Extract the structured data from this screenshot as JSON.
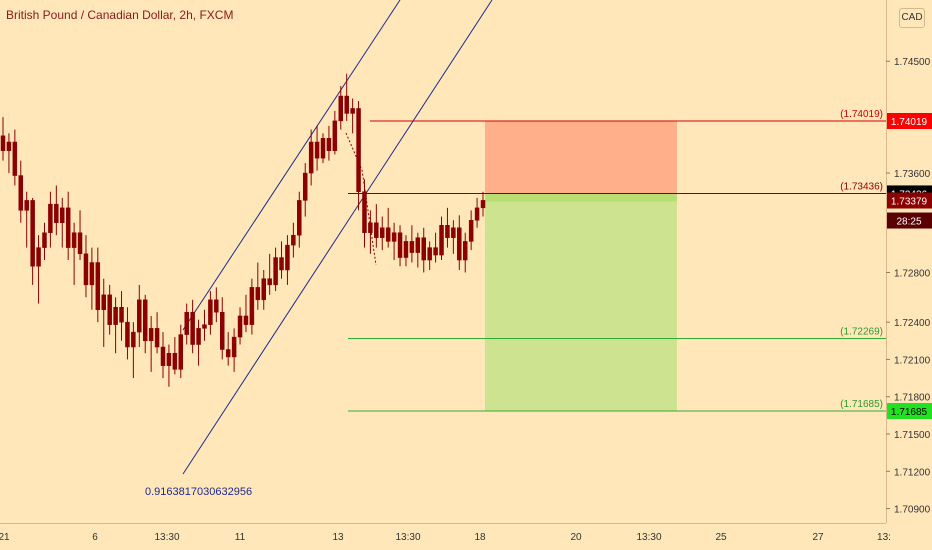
{
  "header": {
    "title": "British Pound / Canadian Dollar, 2h, FXCM",
    "currency": "CAD"
  },
  "colors": {
    "background": "#FFE7BA",
    "bull": "#8B0000",
    "bear": "#8B0000",
    "channel": "#1F2A8C",
    "stop_line": "#D00000",
    "entry_line": "#8B0000",
    "target_line": "#33AA33",
    "stop_zone": "#FFB08A",
    "profit_zone": "#CDE38F",
    "stop_badge": "#FF0000",
    "entry_badge": "#000000",
    "last_badge": "#8B0000",
    "target_badge": "#22E022"
  },
  "chart_data": {
    "type": "candlestick",
    "title": "British Pound / Canadian Dollar, 2h, FXCM",
    "y_ticks": [
      "1.74500",
      "1.73600",
      "1.72800",
      "1.72400",
      "1.72100",
      "1.71800",
      "1.71500",
      "1.71200",
      "1.70900"
    ],
    "y_tick_values": [
      1.745,
      1.736,
      1.728,
      1.724,
      1.721,
      1.718,
      1.715,
      1.712,
      1.709
    ],
    "x_ticks": [
      "21",
      "6",
      "13:30",
      "11",
      "13",
      "13:30",
      "18",
      "20",
      "13:30",
      "25",
      "27",
      "13:"
    ],
    "levels": {
      "stop": {
        "label": "(1.74019)",
        "value": 1.74019
      },
      "entry": {
        "label": "(1.73436)",
        "value": 1.73436
      },
      "target1": {
        "label": "(1.72269)",
        "value": 1.72269
      },
      "target2": {
        "label": "(1.71685)",
        "value": 1.71685
      }
    },
    "price_badges": [
      {
        "name": "stop",
        "text": "1.74019",
        "value": 1.74019
      },
      {
        "name": "entry",
        "text": "1.73436",
        "value": 1.73436
      },
      {
        "name": "last",
        "text": "1.73379",
        "value": 1.73379
      },
      {
        "name": "timer",
        "text": "28:25"
      },
      {
        "name": "target",
        "text": "1.71685",
        "value": 1.71685
      }
    ],
    "annotation": "0.9163817030632956",
    "candles": [
      [
        1.739,
        1.7405,
        1.737,
        1.7378
      ],
      [
        1.7378,
        1.7392,
        1.736,
        1.7385
      ],
      [
        1.7385,
        1.7395,
        1.735,
        1.7358
      ],
      [
        1.7358,
        1.737,
        1.732,
        1.733
      ],
      [
        1.733,
        1.7345,
        1.73,
        1.7338
      ],
      [
        1.7338,
        1.734,
        1.727,
        1.7285
      ],
      [
        1.7285,
        1.731,
        1.7255,
        1.73
      ],
      [
        1.73,
        1.732,
        1.729,
        1.7312
      ],
      [
        1.7312,
        1.7345,
        1.73,
        1.7335
      ],
      [
        1.7335,
        1.735,
        1.731,
        1.732
      ],
      [
        1.732,
        1.734,
        1.73,
        1.7332
      ],
      [
        1.7332,
        1.7345,
        1.729,
        1.73
      ],
      [
        1.73,
        1.732,
        1.727,
        1.7312
      ],
      [
        1.7312,
        1.733,
        1.729,
        1.7295
      ],
      [
        1.7295,
        1.731,
        1.726,
        1.727
      ],
      [
        1.727,
        1.73,
        1.725,
        1.7288
      ],
      [
        1.7288,
        1.73,
        1.724,
        1.725
      ],
      [
        1.725,
        1.7275,
        1.722,
        1.7262
      ],
      [
        1.7262,
        1.727,
        1.723,
        1.7238
      ],
      [
        1.7238,
        1.726,
        1.7215,
        1.7252
      ],
      [
        1.7252,
        1.7265,
        1.7225,
        1.724
      ],
      [
        1.724,
        1.7252,
        1.721,
        1.722
      ],
      [
        1.722,
        1.724,
        1.7195,
        1.7232
      ],
      [
        1.7232,
        1.727,
        1.722,
        1.7258
      ],
      [
        1.7258,
        1.7262,
        1.7215,
        1.7225
      ],
      [
        1.7225,
        1.7245,
        1.72,
        1.7235
      ],
      [
        1.7235,
        1.7248,
        1.7215,
        1.722
      ],
      [
        1.722,
        1.7232,
        1.7195,
        1.7205
      ],
      [
        1.7205,
        1.7222,
        1.7188,
        1.7215
      ],
      [
        1.7215,
        1.7228,
        1.7198,
        1.7202
      ],
      [
        1.7202,
        1.7238,
        1.7195,
        1.723
      ],
      [
        1.723,
        1.7255,
        1.7222,
        1.7248
      ],
      [
        1.7248,
        1.7258,
        1.7215,
        1.7222
      ],
      [
        1.7222,
        1.7242,
        1.7205,
        1.7235
      ],
      [
        1.7235,
        1.725,
        1.7225,
        1.7238
      ],
      [
        1.7238,
        1.7265,
        1.723,
        1.7258
      ],
      [
        1.7258,
        1.7268,
        1.724,
        1.7248
      ],
      [
        1.7248,
        1.726,
        1.721,
        1.7218
      ],
      [
        1.7218,
        1.7232,
        1.7205,
        1.7212
      ],
      [
        1.7212,
        1.7235,
        1.72,
        1.7228
      ],
      [
        1.7228,
        1.7252,
        1.7222,
        1.7245
      ],
      [
        1.7245,
        1.7262,
        1.7232,
        1.7238
      ],
      [
        1.7238,
        1.7275,
        1.723,
        1.7268
      ],
      [
        1.7268,
        1.7288,
        1.725,
        1.7258
      ],
      [
        1.7258,
        1.7282,
        1.725,
        1.7275
      ],
      [
        1.7275,
        1.7295,
        1.7262,
        1.727
      ],
      [
        1.727,
        1.73,
        1.7265,
        1.7292
      ],
      [
        1.7292,
        1.7305,
        1.7275,
        1.7282
      ],
      [
        1.7282,
        1.731,
        1.727,
        1.7302
      ],
      [
        1.7302,
        1.732,
        1.7292,
        1.731
      ],
      [
        1.731,
        1.7345,
        1.73,
        1.7338
      ],
      [
        1.7338,
        1.7368,
        1.7325,
        1.736
      ],
      [
        1.736,
        1.7395,
        1.735,
        1.7385
      ],
      [
        1.7385,
        1.7398,
        1.7362,
        1.7372
      ],
      [
        1.7372,
        1.7392,
        1.7368,
        1.7388
      ],
      [
        1.7388,
        1.7398,
        1.737,
        1.7378
      ],
      [
        1.7378,
        1.741,
        1.7375,
        1.7402
      ],
      [
        1.7402,
        1.743,
        1.7395,
        1.7422
      ],
      [
        1.7422,
        1.744,
        1.7402,
        1.7408
      ],
      [
        1.7408,
        1.742,
        1.7392,
        1.7412
      ],
      [
        1.7412,
        1.7418,
        1.733,
        1.7345
      ],
      [
        1.7345,
        1.7355,
        1.73,
        1.7312
      ],
      [
        1.7312,
        1.733,
        1.7295,
        1.732
      ],
      [
        1.732,
        1.7335,
        1.73,
        1.7308
      ],
      [
        1.7308,
        1.7325,
        1.7298,
        1.7316
      ],
      [
        1.7316,
        1.7332,
        1.73,
        1.7305
      ],
      [
        1.7305,
        1.732,
        1.729,
        1.7312
      ],
      [
        1.7312,
        1.7318,
        1.7285,
        1.7292
      ],
      [
        1.7292,
        1.731,
        1.7285,
        1.7305
      ],
      [
        1.7305,
        1.7318,
        1.7288,
        1.7296
      ],
      [
        1.7296,
        1.7312,
        1.7284,
        1.7308
      ],
      [
        1.7308,
        1.7316,
        1.728,
        1.729
      ],
      [
        1.729,
        1.7305,
        1.7282,
        1.73
      ],
      [
        1.73,
        1.7312,
        1.7288,
        1.7294
      ],
      [
        1.7294,
        1.7325,
        1.729,
        1.7318
      ],
      [
        1.7318,
        1.7332,
        1.73,
        1.7308
      ],
      [
        1.7308,
        1.7322,
        1.7295,
        1.7316
      ],
      [
        1.7316,
        1.7326,
        1.7282,
        1.729
      ],
      [
        1.729,
        1.7312,
        1.728,
        1.7305
      ],
      [
        1.7305,
        1.733,
        1.7298,
        1.7322
      ],
      [
        1.7322,
        1.734,
        1.7316,
        1.7332
      ],
      [
        1.7332,
        1.7345,
        1.7325,
        1.7338
      ]
    ]
  }
}
